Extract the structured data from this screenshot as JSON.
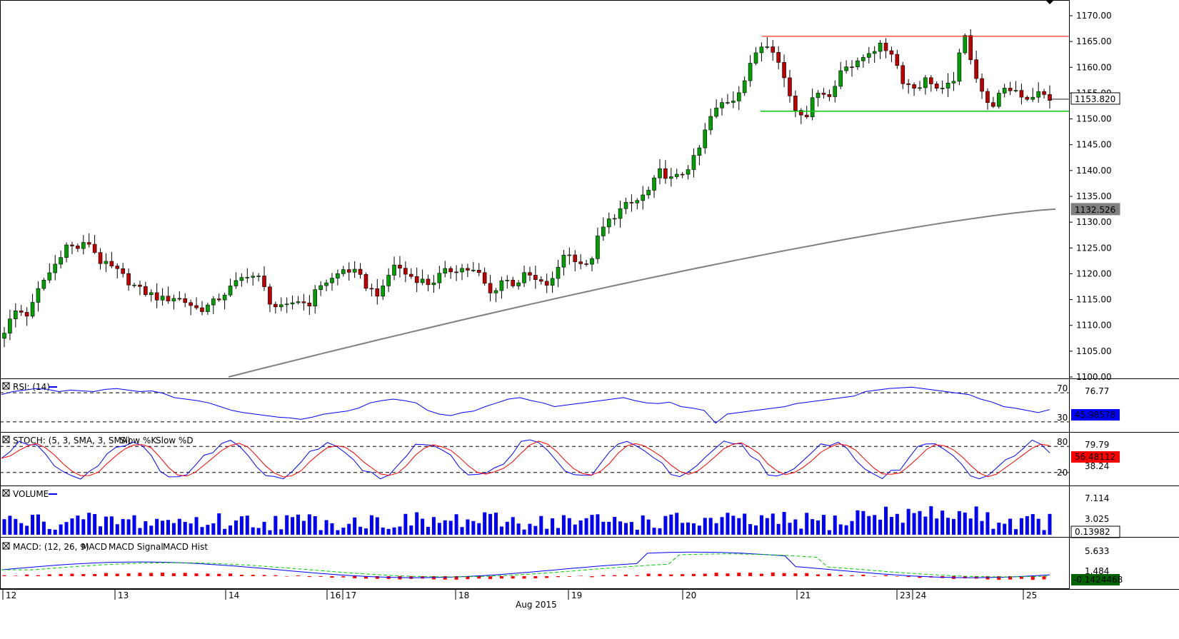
{
  "instrument_price_now": "1153.820",
  "ma_label": "1132.526",
  "chart_data": [
    {
      "type": "candlestick",
      "panel": "price",
      "yticks": [
        "1170.00",
        "1165.00",
        "1160.00",
        "1155.00",
        "1150.00",
        "1145.00",
        "1140.00",
        "1135.00",
        "1130.00",
        "1125.00",
        "1120.00",
        "1115.00",
        "1110.00",
        "1105.00",
        "1100.00"
      ],
      "ylim": [
        1100,
        1170
      ],
      "resistance": 1166.0,
      "support": 1151.5,
      "current_price": 1153.82,
      "moving_average_last": 1132.526,
      "ma_start": 1100.0,
      "ohlc_anchor_closes": [
        1109,
        1113,
        1112,
        1118,
        1121,
        1125.5,
        1125,
        1126,
        1122,
        1121,
        1119,
        1117,
        1116,
        1115,
        1115.5,
        1114.5,
        1113,
        1114,
        1116,
        1118,
        1120,
        1119,
        1114,
        1113,
        1115,
        1114,
        1118,
        1119,
        1121,
        1120,
        1117,
        1116,
        1122,
        1120,
        1119,
        1118,
        1120,
        1121,
        1121,
        1120,
        1116,
        1119,
        1118,
        1120,
        1118,
        1118,
        1124,
        1123,
        1121,
        1128,
        1131,
        1133,
        1134,
        1136,
        1140,
        1138,
        1140,
        1143,
        1150,
        1153,
        1154,
        1158,
        1164,
        1165,
        1159,
        1152,
        1151,
        1156,
        1154,
        1161,
        1160,
        1163,
        1164,
        1163,
        1157,
        1156,
        1158,
        1155,
        1157,
        1166,
        1158,
        1152,
        1155,
        1156,
        1154,
        1155,
        1154
      ]
    },
    {
      "type": "line",
      "panel": "rsi",
      "title": "RSI: (14)",
      "levels": [
        "70",
        "30"
      ],
      "scale_top": "76.77",
      "last_value": "45.98578",
      "values": [
        66,
        70,
        72,
        74,
        73,
        70,
        72,
        71,
        70,
        73,
        74,
        72,
        70,
        71,
        68,
        62,
        60,
        58,
        55,
        50,
        45,
        42,
        40,
        38,
        36,
        35,
        33,
        36,
        40,
        42,
        44,
        48,
        55,
        58,
        60,
        58,
        55,
        45,
        40,
        38,
        42,
        44,
        50,
        55,
        60,
        62,
        58,
        55,
        50,
        52,
        54,
        56,
        58,
        60,
        62,
        58,
        55,
        54,
        56,
        50,
        48,
        45,
        28,
        40,
        42,
        44,
        46,
        48,
        50,
        54,
        56,
        58,
        60,
        62,
        64,
        70,
        72,
        74,
        75,
        76,
        74,
        72,
        70,
        68,
        66,
        60,
        56,
        50,
        48,
        45,
        42,
        46
      ]
    },
    {
      "type": "line",
      "panel": "stochastic",
      "title": "STOCH: (5, 3, SMA, 3, SMA)",
      "series": [
        {
          "name": "Slow %K"
        },
        {
          "name": "Slow %D"
        }
      ],
      "levels": [
        "80",
        "20"
      ],
      "scale_top": "79.79",
      "scale_mid": "38.24",
      "last_value": "56.48112"
    },
    {
      "type": "bar",
      "panel": "volume",
      "title": "VOLUME",
      "scale_top": "7.114",
      "scale_mid": "3.025",
      "last_value": "0.13982"
    },
    {
      "type": "line",
      "panel": "macd",
      "title": "MACD: (12, 26, 9)",
      "series": [
        {
          "name": "MACD"
        },
        {
          "name": "MACD Signal"
        },
        {
          "name": "MACD Hist"
        }
      ],
      "scale_top": "5.633",
      "scale_mid": "1.484",
      "last_value": "-0.1424468"
    }
  ],
  "x_axis": {
    "days": [
      "12",
      "13",
      "14",
      "16",
      "17",
      "18",
      "19",
      "20",
      "21",
      "23",
      "24",
      "25"
    ],
    "month_label": "Aug 2015"
  },
  "colors": {
    "bull": "#00a000",
    "bear": "#c00000",
    "resistance": "#ff0000",
    "support": "#00cc00",
    "ma": "#808080",
    "blue": "#0000ff",
    "red": "#ff0000",
    "green": "#00cc00"
  }
}
